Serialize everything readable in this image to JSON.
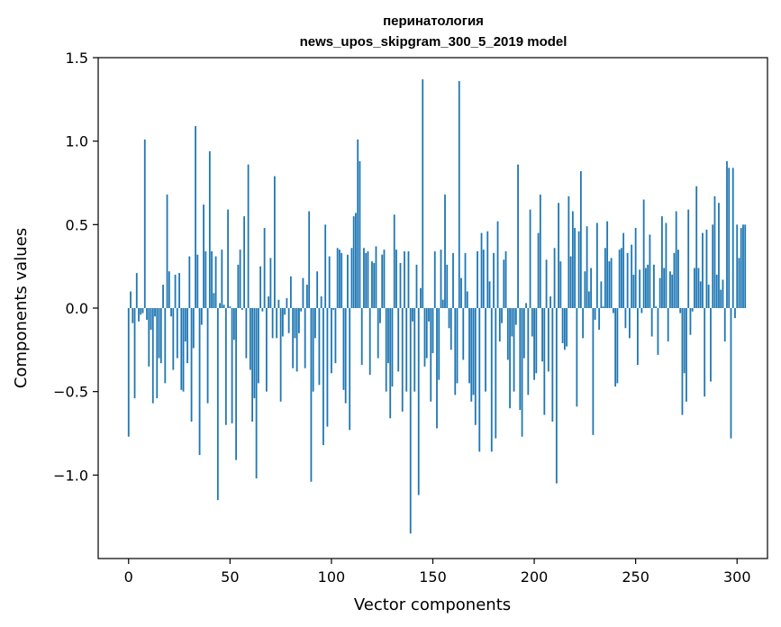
{
  "chart_data": {
    "type": "bar",
    "title": "перинатология",
    "subtitle": "news_upos_skipgram_300_5_2019 model",
    "xlabel": "Vector components",
    "ylabel": "Components values",
    "xlim": [
      -15,
      315
    ],
    "ylim": [
      -1.5,
      1.5
    ],
    "xticks": [
      0,
      50,
      100,
      150,
      200,
      250,
      300
    ],
    "xtick_labels": [
      "0",
      "50",
      "100",
      "150",
      "200",
      "250",
      "300"
    ],
    "yticks": [
      -1.0,
      -0.5,
      0.0,
      0.5,
      1.0,
      1.5
    ],
    "ytick_labels": [
      "−1.0",
      "−0.5",
      "0.0",
      "0.5",
      "1.0",
      "1.5"
    ],
    "grid": false,
    "bar_color": "#1f77b4",
    "series": [
      {
        "values": [
          -0.77,
          0.1,
          -0.09,
          -0.54,
          0.21,
          -0.08,
          -0.04,
          -0.03,
          1.01,
          -0.07,
          -0.35,
          -0.13,
          -0.57,
          -0.05,
          -0.54,
          -0.3,
          -0.33,
          0.14,
          -0.45,
          0.68,
          0.22,
          -0.05,
          -0.37,
          0.2,
          -0.3,
          0.21,
          -0.49,
          -0.5,
          -0.2,
          -0.33,
          0.31,
          -0.68,
          -0.24,
          1.09,
          0.32,
          -0.88,
          -0.1,
          0.62,
          0.34,
          -0.57,
          0.94,
          0.34,
          0.09,
          0.31,
          -1.15,
          0.03,
          0.35,
          0.02,
          -0.7,
          0.59,
          0.01,
          -0.69,
          -0.19,
          -0.91,
          0.26,
          0.35,
          -0.01,
          0.55,
          -0.3,
          0.86,
          -0.37,
          -0.68,
          -0.54,
          -1.02,
          -0.45,
          0.25,
          -0.02,
          0.48,
          -0.5,
          0.07,
          0.3,
          -0.18,
          0.79,
          -0.18,
          0.05,
          -0.56,
          -0.17,
          -0.04,
          0.06,
          -0.15,
          0.19,
          -0.36,
          -0.18,
          -0.38,
          -0.15,
          -0.02,
          0.18,
          -0.36,
          0.14,
          0.58,
          -1.04,
          -0.5,
          -0.18,
          0.22,
          -0.46,
          0.07,
          -0.82,
          0.5,
          -0.71,
          0.31,
          -0.39,
          -0.01,
          -0.33,
          0.36,
          0.35,
          0.33,
          -0.49,
          -0.57,
          0.32,
          -0.73,
          0.36,
          0.55,
          0.57,
          1.01,
          0.88,
          -0.34,
          0.36,
          0.33,
          0.34,
          -0.4,
          0.28,
          0.27,
          0.37,
          -0.3,
          -0.09,
          0.32,
          0.35,
          -0.5,
          -0.33,
          -0.66,
          -0.47,
          0.56,
          0.35,
          -0.38,
          0.27,
          -0.62,
          0.34,
          -0.5,
          0.34,
          -1.35,
          -0.08,
          -0.5,
          0.26,
          -1.12,
          0.12,
          1.37,
          -0.35,
          -0.3,
          -0.08,
          -0.56,
          -0.27,
          0.34,
          -0.72,
          -0.43,
          0.35,
          0.05,
          0.68,
          0.26,
          -0.12,
          -0.25,
          0.33,
          -0.52,
          -0.45,
          1.36,
          0.18,
          -0.31,
          0.33,
          0.1,
          -0.45,
          -0.56,
          -0.52,
          -0.7,
          0.34,
          -0.86,
          0.45,
          0.35,
          -0.5,
          0.46,
          0.16,
          -0.86,
          0.33,
          -0.78,
          0.52,
          -0.2,
          -0.09,
          0.29,
          0.34,
          -0.31,
          -0.6,
          -0.17,
          -0.5,
          -0.1,
          0.86,
          -0.61,
          -0.77,
          -0.3,
          0.03,
          -0.52,
          0.59,
          -0.17,
          -0.43,
          -0.39,
          0.45,
          0.68,
          -0.32,
          -0.64,
          0.29,
          -0.38,
          0.07,
          -0.68,
          0.36,
          -1.05,
          0.63,
          0.28,
          -0.21,
          -0.25,
          -0.23,
          0.67,
          0.31,
          0.58,
          0.48,
          -0.59,
          0.46,
          0.82,
          -0.18,
          0.22,
          0.49,
          0.1,
          0.24,
          -0.76,
          -0.07,
          0.51,
          -0.13,
          0.16,
          0.01,
          0.36,
          0.52,
          0.28,
          0.3,
          -0.03,
          -0.47,
          -0.45,
          0.35,
          0.36,
          0.45,
          -0.12,
          0.33,
          -0.18,
          0.38,
          0.2,
          0.48,
          -0.34,
          0.23,
          -0.03,
          0.65,
          0.24,
          0.26,
          0.44,
          -0.17,
          0.26,
          0.01,
          -0.28,
          0.18,
          0.55,
          0.24,
          0.51,
          -0.2,
          0.22,
          0.2,
          0.33,
          0.58,
          0.35,
          -0.03,
          -0.64,
          -0.39,
          -0.56,
          0.59,
          -0.16,
          -0.02,
          0.24,
          0.73,
          0.24,
          0.16,
          0.45,
          -0.53,
          0.47,
          0.14,
          -0.44,
          0.5,
          0.67,
          0.2,
          0.63,
          0.11,
          0.17,
          -0.2,
          0.88,
          0.84,
          -0.78,
          0.84,
          -0.06,
          0.5,
          0.3,
          0.48,
          0.5,
          0.5
        ]
      }
    ]
  }
}
